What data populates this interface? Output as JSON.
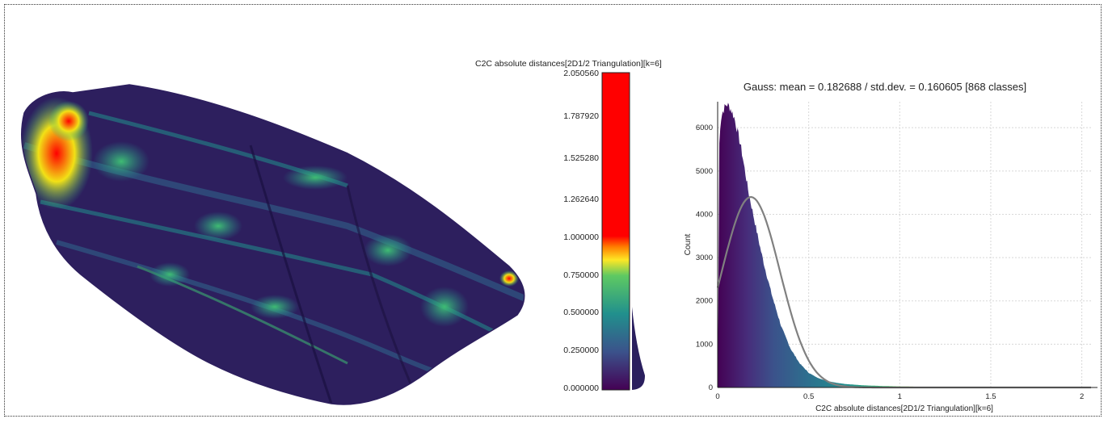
{
  "colors": {
    "frame_border": "#333333",
    "scale_red": "#ff0000",
    "scale_yellow": "#f2e116",
    "scale_green": "#2eb37c",
    "scale_blue": "#3b528b",
    "scale_purple": "#440154",
    "gauss_curve": "#808080",
    "grid": "#d8d8d8"
  },
  "mesh_view": {
    "description_icon": "point-cloud-mesh-icon"
  },
  "scale_bar": {
    "title": "C2C absolute distances[2D1/2 Triangulation][k=6]",
    "labels": [
      "2.050560",
      "1.787920",
      "1.525280",
      "1.262640",
      "1.000000",
      "0.750000",
      "0.500000",
      "0.250000",
      "0.000000"
    ]
  },
  "chart_data": {
    "type": "bar",
    "title": "Gauss: mean = 0.182688 / std.dev. = 0.160605 [868 classes]",
    "xlabel": "C2C absolute distances[2D1/2 Triangulation][k=6]",
    "ylabel": "Count",
    "xlim": [
      0,
      2.0506
    ],
    "ylim": [
      0,
      6600
    ],
    "xticks": [
      "0",
      "0.5",
      "1",
      "1.5",
      "2"
    ],
    "yticks": [
      "0",
      "1000",
      "2000",
      "3000",
      "4000",
      "5000",
      "6000"
    ],
    "grid": true,
    "histogram_profile": {
      "x": [
        0,
        0.01,
        0.02,
        0.03,
        0.05,
        0.07,
        0.09,
        0.11,
        0.13,
        0.15,
        0.17,
        0.2,
        0.23,
        0.26,
        0.3,
        0.35,
        0.4,
        0.45,
        0.5,
        0.55,
        0.6,
        0.65,
        0.7,
        0.8,
        0.9,
        1.0,
        1.1,
        1.2,
        1.3,
        1.4,
        1.5,
        2.05
      ],
      "y": [
        0,
        5900,
        6250,
        6400,
        6550,
        6450,
        6250,
        5900,
        5500,
        5000,
        4500,
        3900,
        3300,
        2750,
        2100,
        1400,
        900,
        560,
        340,
        220,
        150,
        110,
        80,
        50,
        35,
        25,
        18,
        12,
        8,
        5,
        3,
        0
      ]
    },
    "series": [
      {
        "values": {
          "mean": 0.182688,
          "std_dev": 0.160605,
          "classes": 868
        }
      }
    ]
  }
}
